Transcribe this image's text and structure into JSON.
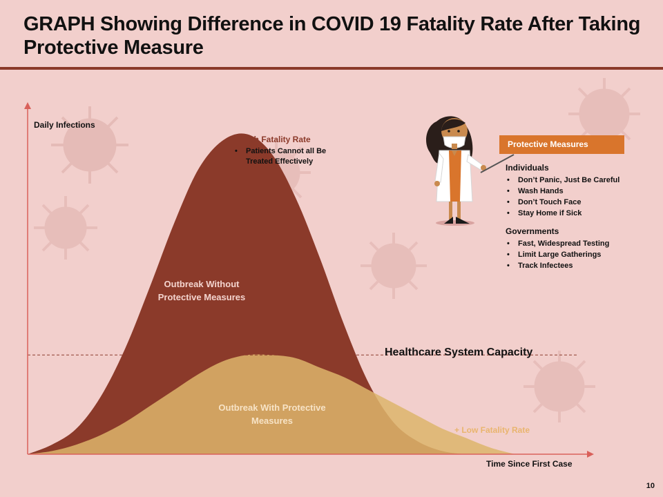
{
  "slide": {
    "title": "GRAPH Showing Difference in COVID 19 Fatality Rate After Taking Protective Measure",
    "page_number": "10"
  },
  "colors": {
    "background": "#F2CFCC",
    "accent_dark": "#8B3A2A",
    "accent_tan": "#DDB56B",
    "accent_orange": "#D9752C"
  },
  "chart_data": {
    "type": "area",
    "title": "",
    "xlabel": "Time Since First Case",
    "ylabel": "Daily Infections",
    "x": [
      0,
      5,
      10,
      15,
      20,
      25,
      30,
      35,
      40,
      45,
      50,
      55,
      60,
      65,
      70,
      75,
      80,
      85,
      90,
      95,
      100
    ],
    "series": [
      {
        "name": "Outbreak Without Protective Measures",
        "label": "Outbreak Without Protective Measures",
        "values": [
          0,
          3,
          8,
          18,
          33,
          52,
          72,
          89,
          98,
          100,
          94,
          80,
          61,
          40,
          22,
          10,
          4,
          1,
          0,
          0,
          0
        ],
        "color": "#8B3A2A"
      },
      {
        "name": "Outbreak With Protective Measures",
        "label": "Outbreak With Protective Measures",
        "values": [
          0,
          1,
          3,
          6,
          10,
          15,
          20,
          25,
          29,
          31,
          31,
          30,
          27,
          24,
          20,
          16,
          12,
          8,
          5,
          2,
          0
        ],
        "color": "#DDB56B"
      }
    ],
    "reference_line": {
      "name": "Healthcare System Capacity",
      "value": 31
    },
    "ylim": [
      0,
      110
    ],
    "xlim": [
      0,
      115
    ],
    "grid": false,
    "annotations": {
      "high": {
        "title": "+ High Fatality Rate",
        "items": [
          "Patients Cannot all Be Treated Effectively"
        ]
      },
      "low": {
        "title": "+ Low Fatality Rate"
      }
    }
  },
  "measures": {
    "box_label": "Protective Measures",
    "individuals": {
      "title": "Individuals",
      "items": [
        "Don’t Panic,  Just Be Careful",
        "Wash Hands",
        "Don’t Touch Face",
        "Stay Home if Sick"
      ]
    },
    "governments": {
      "title": "Governments",
      "items": [
        "Fast, Widespread Testing",
        "Limit Large Gatherings",
        "Track Infectees"
      ]
    }
  }
}
